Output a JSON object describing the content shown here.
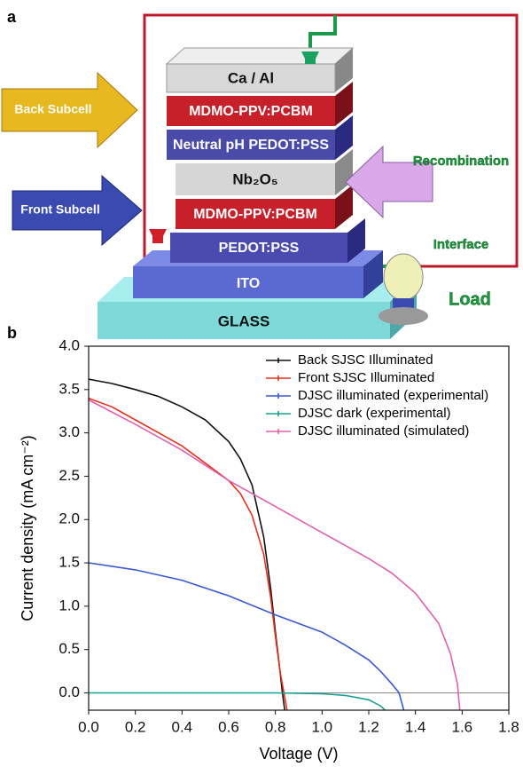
{
  "panel_a": {
    "label": "a",
    "layers": [
      "Ca / Al",
      "MDMO-PPV:PCBM",
      "Neutral pH PEDOT:PSS",
      "Nb₂O₅",
      "MDMO-PPV:PCBM",
      "PEDOT:PSS",
      "ITO",
      "GLASS"
    ],
    "arrows": [
      "Back Subcell",
      "Front Subcell"
    ],
    "recombination": [
      "Recombination",
      "Interface"
    ],
    "load": "Load"
  },
  "panel_b": {
    "label": "b"
  },
  "chart_data": {
    "type": "line",
    "xlabel": "Voltage (V)",
    "ylabel": "Current density (mA cm⁻²)",
    "xlim": [
      0,
      1.8
    ],
    "ylim": [
      -0.2,
      4.0
    ],
    "xticks": [
      {
        "value": 0,
        "label": "0.0"
      },
      0.2,
      0.4,
      0.6,
      0.8,
      {
        "value": 1,
        "label": "1.0"
      },
      1.2,
      1.4,
      1.6,
      1.8
    ],
    "yticks": [
      {
        "value": 0,
        "label": "0.0"
      },
      0.5,
      {
        "value": 1,
        "label": "1.0"
      },
      1.5,
      {
        "value": 2,
        "label": "2.0"
      },
      2.5,
      {
        "value": 3,
        "label": "3.0"
      },
      3.5,
      {
        "value": 4,
        "label": "4.0"
      }
    ],
    "legend": "upper right",
    "series": [
      {
        "name": "Back SJSC Illuminated",
        "color": "#111111",
        "x": [
          0,
          0.1,
          0.2,
          0.3,
          0.4,
          0.5,
          0.6,
          0.65,
          0.7,
          0.75,
          0.78,
          0.8,
          0.82,
          0.83,
          0.84
        ],
        "values": [
          3.62,
          3.57,
          3.5,
          3.42,
          3.3,
          3.15,
          2.9,
          2.7,
          2.4,
          1.8,
          1.2,
          0.7,
          0.25,
          0.0,
          -0.2
        ]
      },
      {
        "name": "Front SJSC Illuminated",
        "color": "#e8301c",
        "x": [
          0,
          0.1,
          0.2,
          0.3,
          0.4,
          0.5,
          0.6,
          0.65,
          0.7,
          0.75,
          0.78,
          0.8,
          0.82,
          0.84,
          0.85
        ],
        "values": [
          3.4,
          3.3,
          3.15,
          3.0,
          2.85,
          2.65,
          2.45,
          2.3,
          2.05,
          1.6,
          1.1,
          0.65,
          0.25,
          -0.05,
          -0.2
        ]
      },
      {
        "name": "DJSC illuminated (experimental)",
        "color": "#3a5ad0",
        "x": [
          0,
          0.2,
          0.4,
          0.6,
          0.8,
          1.0,
          1.1,
          1.2,
          1.25,
          1.3,
          1.33,
          1.35
        ],
        "values": [
          1.5,
          1.42,
          1.3,
          1.12,
          0.9,
          0.7,
          0.55,
          0.38,
          0.25,
          0.1,
          0.0,
          -0.2
        ]
      },
      {
        "name": "DJSC dark (experimental)",
        "color": "#18a090",
        "x": [
          0,
          0.8,
          1.0,
          1.1,
          1.2,
          1.25,
          1.27
        ],
        "values": [
          0,
          0,
          -0.01,
          -0.03,
          -0.08,
          -0.15,
          -0.2
        ]
      },
      {
        "name": "DJSC illuminated (simulated)",
        "color": "#e060b0",
        "x": [
          0,
          0.2,
          0.4,
          0.6,
          0.8,
          1.0,
          1.2,
          1.3,
          1.4,
          1.5,
          1.55,
          1.58,
          1.59
        ],
        "values": [
          3.38,
          3.1,
          2.8,
          2.45,
          2.15,
          1.85,
          1.55,
          1.38,
          1.15,
          0.8,
          0.45,
          0.1,
          -0.2
        ]
      }
    ]
  }
}
